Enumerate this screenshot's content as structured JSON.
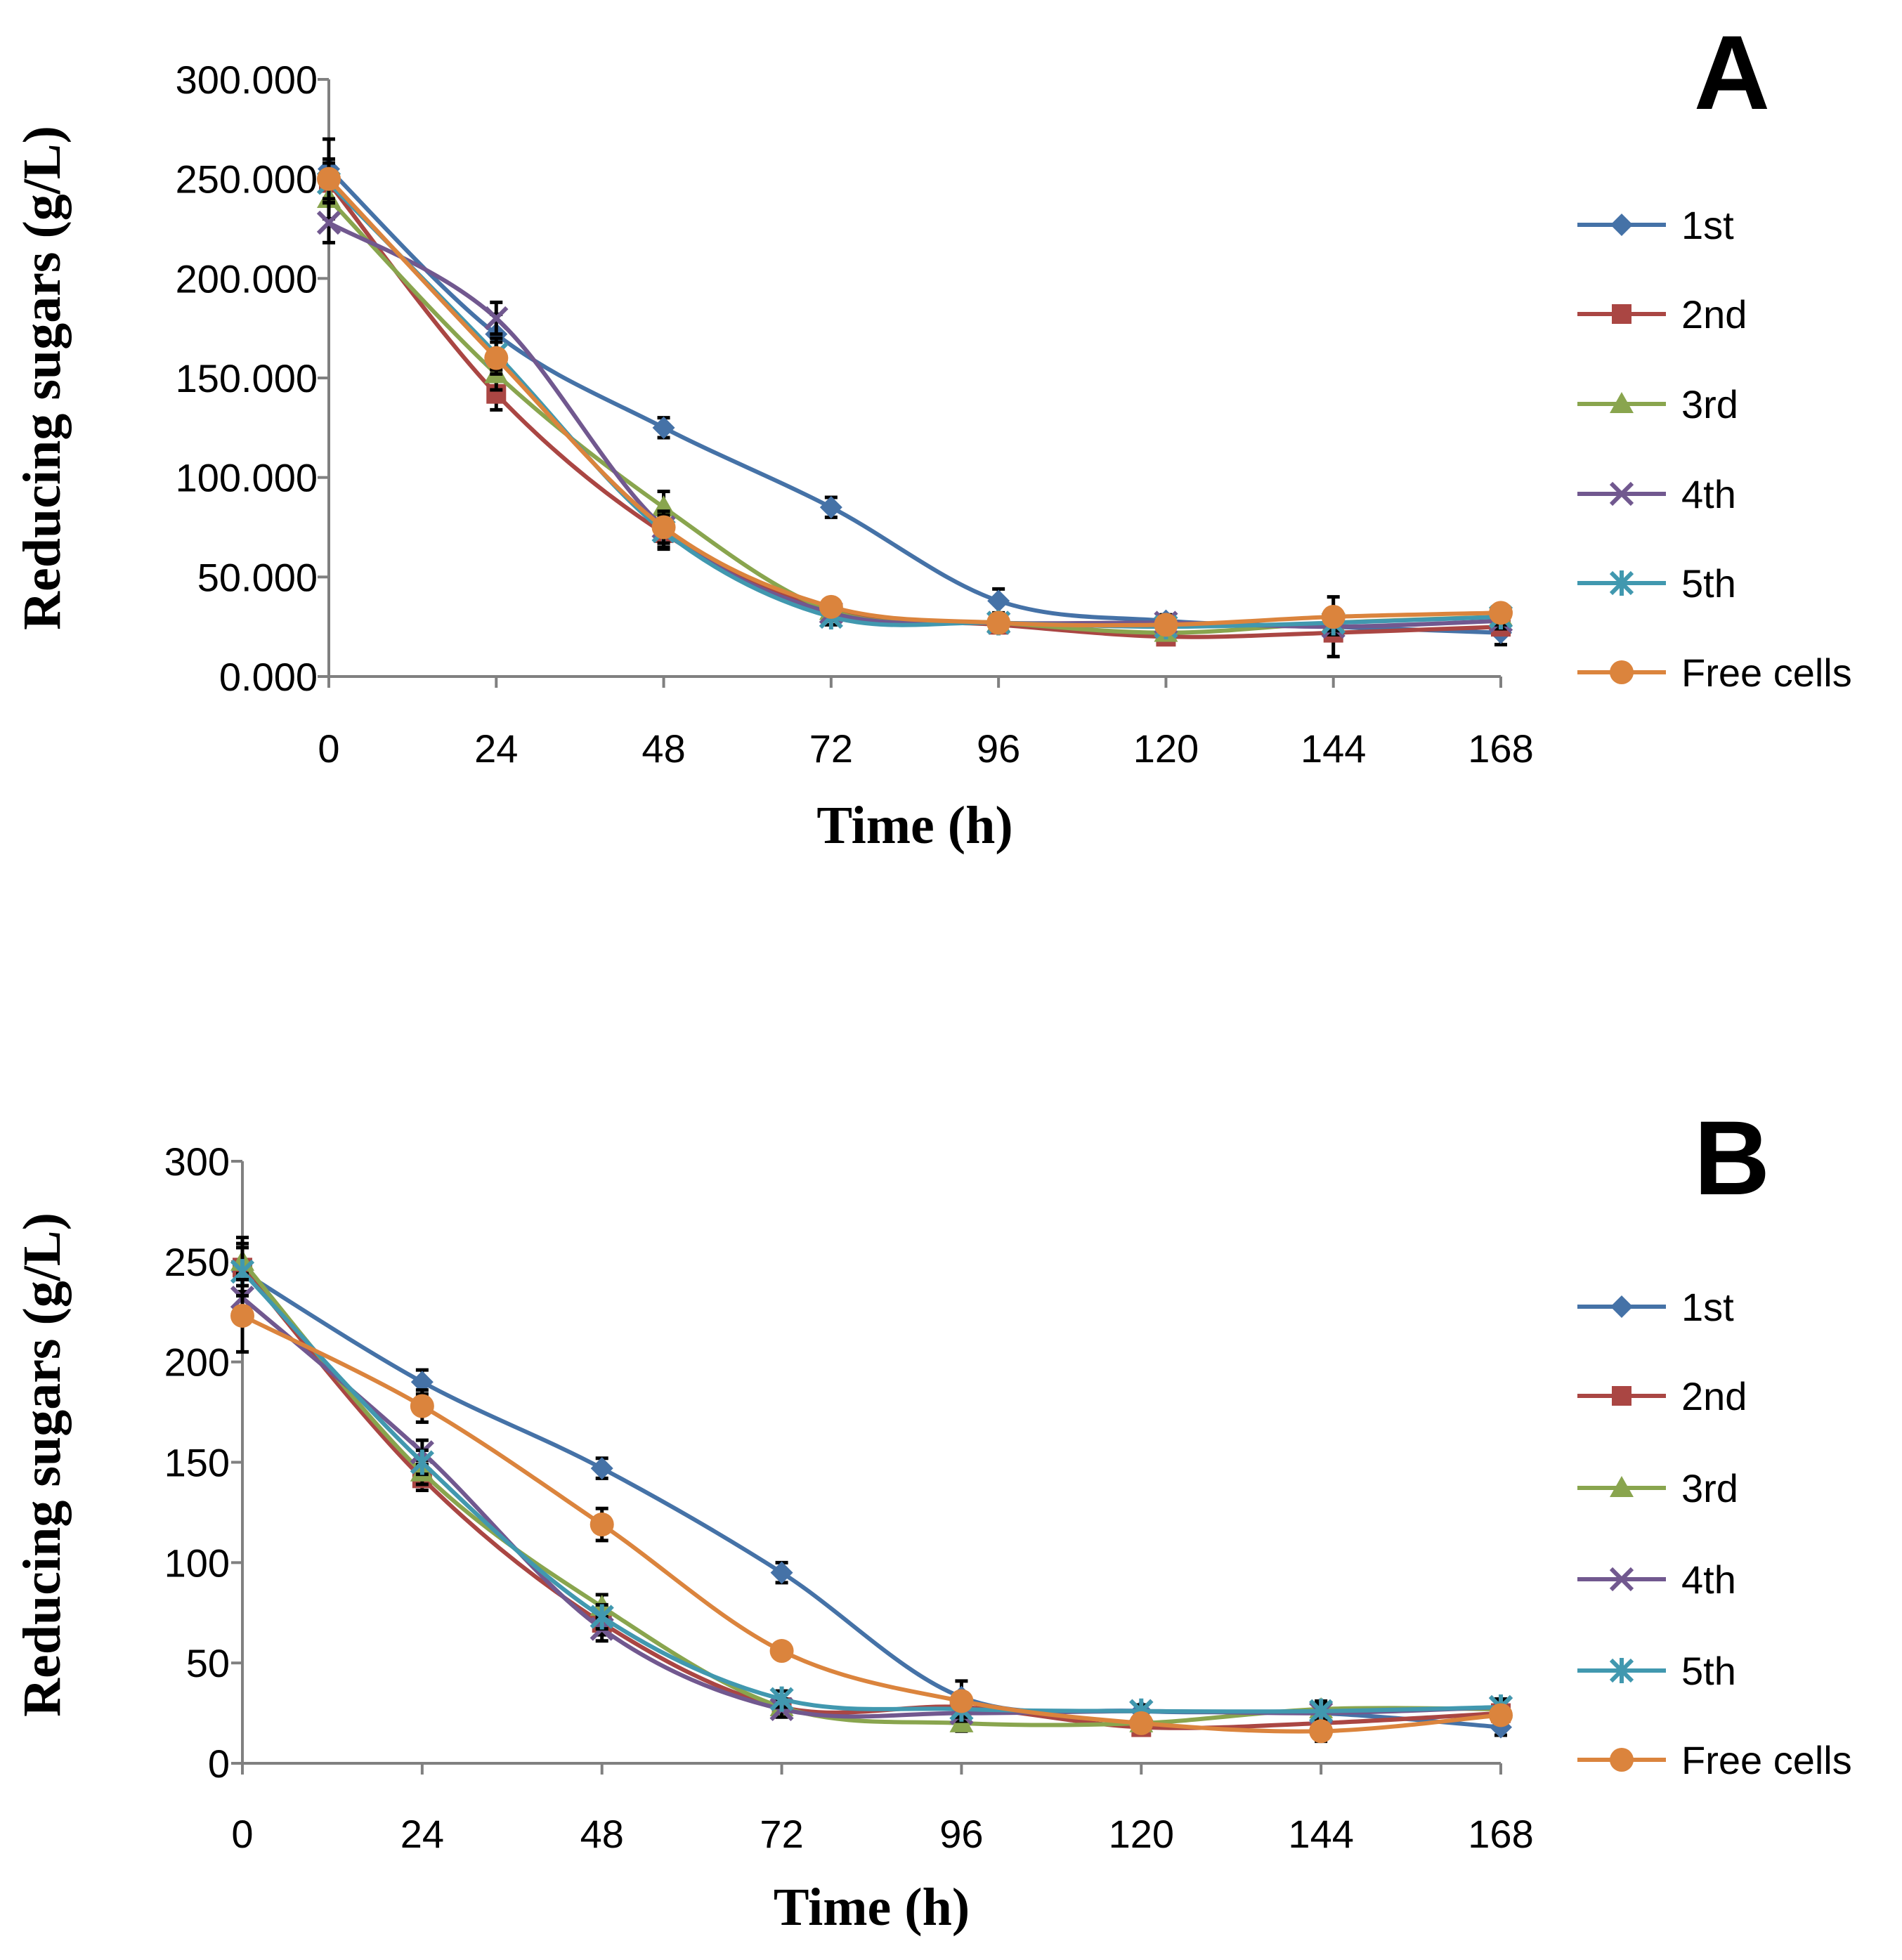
{
  "chart_data": [
    {
      "type": "line",
      "panel_label": "A",
      "xlabel": "Time (h)",
      "ylabel": "Reducing sugars (g/L)",
      "x": [
        0,
        24,
        48,
        72,
        96,
        120,
        144,
        168
      ],
      "x_tick_labels": [
        "0",
        "24",
        "48",
        "72",
        "96",
        "120",
        "144",
        "168"
      ],
      "y_tick_labels": [
        "0.000",
        "50.000",
        "100.000",
        "150.000",
        "200.000",
        "250.000",
        "300.000"
      ],
      "xlim": [
        0,
        168
      ],
      "ylim": [
        0,
        300
      ],
      "legend_position": "right",
      "series": [
        {
          "name": "1st",
          "color": "#4572A7",
          "marker": "diamond",
          "values": [
            255,
            172,
            125,
            85,
            38,
            28,
            25,
            22
          ],
          "errors": [
            15,
            10,
            5,
            5,
            6,
            3,
            15,
            6
          ]
        },
        {
          "name": "2nd",
          "color": "#AA4643",
          "marker": "square",
          "values": [
            248,
            142,
            72,
            33,
            26,
            20,
            22,
            25
          ],
          "errors": [
            10,
            8,
            8,
            4,
            4,
            3,
            4,
            4
          ]
        },
        {
          "name": "3rd",
          "color": "#89A54E",
          "marker": "triangle",
          "values": [
            240,
            152,
            85,
            33,
            27,
            22,
            27,
            30
          ],
          "errors": [
            10,
            8,
            8,
            4,
            4,
            3,
            4,
            4
          ]
        },
        {
          "name": "4th",
          "color": "#71588F",
          "marker": "x",
          "values": [
            228,
            180,
            75,
            32,
            27,
            27,
            25,
            28
          ],
          "errors": [
            10,
            8,
            8,
            4,
            4,
            3,
            4,
            4
          ]
        },
        {
          "name": "5th",
          "color": "#4198AF",
          "marker": "star",
          "values": [
            248,
            162,
            73,
            30,
            27,
            25,
            27,
            30
          ],
          "errors": [
            10,
            8,
            8,
            4,
            4,
            3,
            4,
            4
          ]
        },
        {
          "name": "Free cells",
          "color": "#DB843D",
          "marker": "circle",
          "values": [
            250,
            160,
            75,
            35,
            27,
            26,
            30,
            32
          ],
          "errors": [
            10,
            8,
            8,
            4,
            4,
            3,
            4,
            4
          ]
        }
      ]
    },
    {
      "type": "line",
      "panel_label": "B",
      "xlabel": "Time (h)",
      "ylabel": "Reducing sugars (g/L)",
      "x": [
        0,
        24,
        48,
        72,
        96,
        120,
        144,
        168
      ],
      "x_tick_labels": [
        "0",
        "24",
        "48",
        "72",
        "96",
        "120",
        "144",
        "168"
      ],
      "y_tick_labels": [
        "0",
        "50",
        "100",
        "150",
        "200",
        "250",
        "300"
      ],
      "xlim": [
        0,
        168
      ],
      "ylim": [
        0,
        300
      ],
      "legend_position": "right",
      "series": [
        {
          "name": "1st",
          "color": "#4572A7",
          "marker": "diamond",
          "values": [
            245,
            190,
            147,
            95,
            33,
            26,
            25,
            18
          ],
          "errors": [
            12,
            6,
            5,
            5,
            8,
            3,
            4,
            4
          ]
        },
        {
          "name": "2nd",
          "color": "#AA4643",
          "marker": "square",
          "values": [
            247,
            142,
            70,
            28,
            28,
            18,
            20,
            25
          ],
          "errors": [
            12,
            6,
            6,
            4,
            4,
            3,
            4,
            4
          ]
        },
        {
          "name": "3rd",
          "color": "#89A54E",
          "marker": "triangle",
          "values": [
            250,
            145,
            78,
            28,
            20,
            20,
            27,
            27
          ],
          "errors": [
            12,
            6,
            6,
            4,
            4,
            3,
            4,
            4
          ]
        },
        {
          "name": "4th",
          "color": "#71588F",
          "marker": "x",
          "values": [
            232,
            155,
            67,
            27,
            25,
            26,
            25,
            28
          ],
          "errors": [
            12,
            6,
            6,
            4,
            4,
            3,
            4,
            4
          ]
        },
        {
          "name": "5th",
          "color": "#4198AF",
          "marker": "star",
          "values": [
            245,
            150,
            73,
            32,
            27,
            26,
            26,
            28
          ],
          "errors": [
            12,
            6,
            6,
            4,
            4,
            3,
            4,
            4
          ]
        },
        {
          "name": "Free cells",
          "color": "#DB843D",
          "marker": "circle",
          "values": [
            223,
            178,
            119,
            56,
            31,
            20,
            16,
            24
          ],
          "errors": [
            18,
            8,
            8,
            4,
            4,
            3,
            5,
            4
          ]
        }
      ]
    }
  ]
}
